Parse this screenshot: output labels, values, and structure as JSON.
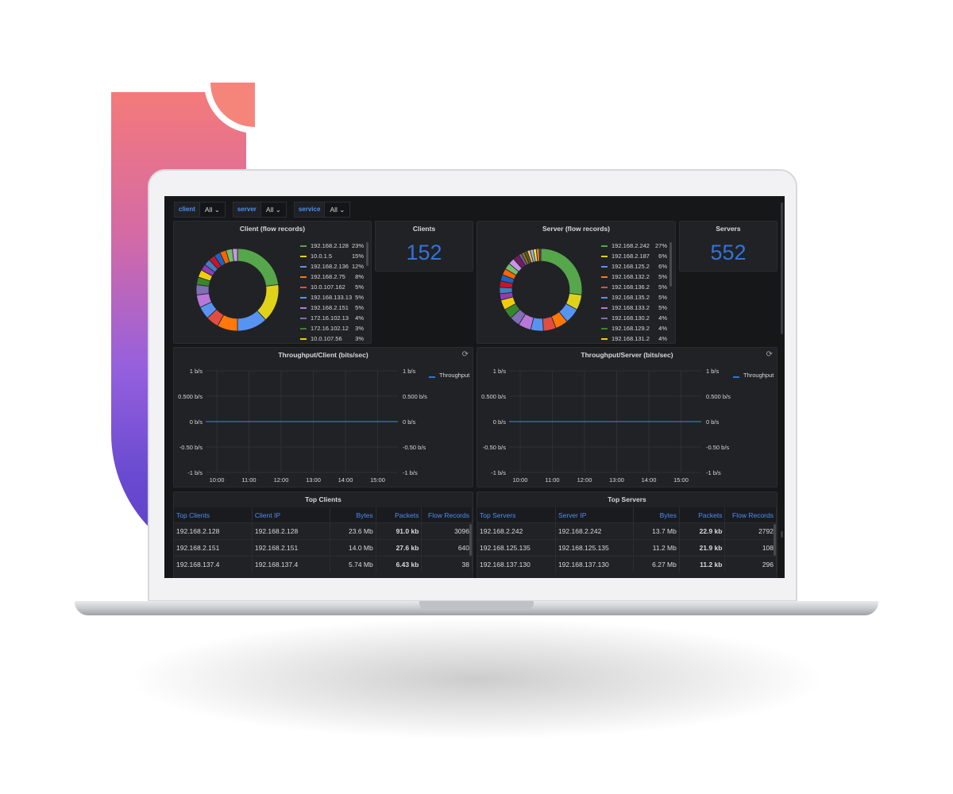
{
  "variables": [
    {
      "label": "client",
      "value": "All"
    },
    {
      "label": "server",
      "value": "All"
    },
    {
      "label": "service",
      "value": "All"
    }
  ],
  "client_pie": {
    "title": "Client (flow records)",
    "legend": [
      {
        "name": "192.168.2.128",
        "pct": "23%"
      },
      {
        "name": "10.0.1.5",
        "pct": "15%"
      },
      {
        "name": "192.168.2.136",
        "pct": "12%"
      },
      {
        "name": "192.168.2.75",
        "pct": "8%"
      },
      {
        "name": "10.0.107.162",
        "pct": "5%"
      },
      {
        "name": "192.168.133.13",
        "pct": "5%"
      },
      {
        "name": "192.168.2.151",
        "pct": "5%"
      },
      {
        "name": "172.16.102.13",
        "pct": "4%"
      },
      {
        "name": "172.16.102.12",
        "pct": "3%"
      },
      {
        "name": "10.0.107.56",
        "pct": "3%"
      }
    ]
  },
  "clients_stat": {
    "title": "Clients",
    "value": "152"
  },
  "server_pie": {
    "title": "Server (flow records)",
    "legend": [
      {
        "name": "192.168.2.242",
        "pct": "27%"
      },
      {
        "name": "192.168.2.187",
        "pct": "6%"
      },
      {
        "name": "192.168.125.2",
        "pct": "6%"
      },
      {
        "name": "192.168.132.2",
        "pct": "5%"
      },
      {
        "name": "192.168.136.2",
        "pct": "5%"
      },
      {
        "name": "192.168.135.2",
        "pct": "5%"
      },
      {
        "name": "192.168.133.2",
        "pct": "5%"
      },
      {
        "name": "192.168.130.2",
        "pct": "4%"
      },
      {
        "name": "192.168.129.2",
        "pct": "4%"
      },
      {
        "name": "192.168.131.2",
        "pct": "4%"
      }
    ]
  },
  "servers_stat": {
    "title": "Servers",
    "value": "552"
  },
  "throughput_client": {
    "title": "Throughput/Client (bits/sec)",
    "legend": "Throughput"
  },
  "throughput_server": {
    "title": "Throughput/Server (bits/sec)",
    "legend": "Throughput"
  },
  "chart_data": [
    {
      "type": "line",
      "title": "Throughput/Client (bits/sec)",
      "x": [
        "10:00",
        "11:00",
        "12:00",
        "13:00",
        "14:00",
        "15:00"
      ],
      "series": [
        {
          "name": "Throughput",
          "values": [
            0,
            0,
            0,
            0,
            0,
            0
          ]
        }
      ],
      "y_ticks": [
        "1 b/s",
        "0.500 b/s",
        "0 b/s",
        "-0.50 b/s",
        "-1 b/s"
      ],
      "ylim": [
        -1,
        1
      ],
      "grid": true,
      "legend_position": "right"
    },
    {
      "type": "line",
      "title": "Throughput/Server (bits/sec)",
      "x": [
        "10:00",
        "11:00",
        "12:00",
        "13:00",
        "14:00",
        "15:00"
      ],
      "series": [
        {
          "name": "Throughput",
          "values": [
            0,
            0,
            0,
            0,
            0,
            0
          ]
        }
      ],
      "y_ticks": [
        "1 b/s",
        "0.500 b/s",
        "0 b/s",
        "-0.50 b/s",
        "-1 b/s"
      ],
      "ylim": [
        -1,
        1
      ],
      "grid": true,
      "legend_position": "right"
    }
  ],
  "top_clients": {
    "title": "Top Clients",
    "columns": [
      "Top Clients",
      "Client IP",
      "Bytes",
      "Packets",
      "Flow Records"
    ],
    "rows": [
      [
        "192.168.2.128",
        "192.168.2.128",
        "23.6 Mb",
        "91.0 kb",
        "3096"
      ],
      [
        "192.168.2.151",
        "192.168.2.151",
        "14.0 Mb",
        "27.6 kb",
        "640"
      ],
      [
        "192.168.137.4",
        "192.168.137.4",
        "5.74 Mb",
        "6.43 kb",
        "38"
      ]
    ]
  },
  "top_servers": {
    "title": "Top Servers",
    "columns": [
      "Top Servers",
      "Server IP",
      "Bytes",
      "Packets",
      "Flow Records"
    ],
    "rows": [
      [
        "192.168.2.242",
        "192.168.2.242",
        "13.7 Mb",
        "22.9 kb",
        "2792"
      ],
      [
        "192.168.125.135",
        "192.168.125.135",
        "11.2 Mb",
        "21.9 kb",
        "108"
      ],
      [
        "192.168.137.130",
        "192.168.137.130",
        "6.27 Mb",
        "11.2 kb",
        "296"
      ]
    ]
  },
  "colors": {
    "accent_blue": "#3274d9",
    "link_blue": "#4d8ff0",
    "bytes_green": "#56a64b",
    "packets_yellow": "#f2cc0c",
    "flows_orange": "#ff780a",
    "legend_palette": [
      "#56a64b",
      "#e0d21a",
      "#5794f2",
      "#ff780a",
      "#e24d42",
      "#5794f2",
      "#b877d9",
      "#806eb7",
      "#37872d",
      "#f2cc0c"
    ]
  }
}
